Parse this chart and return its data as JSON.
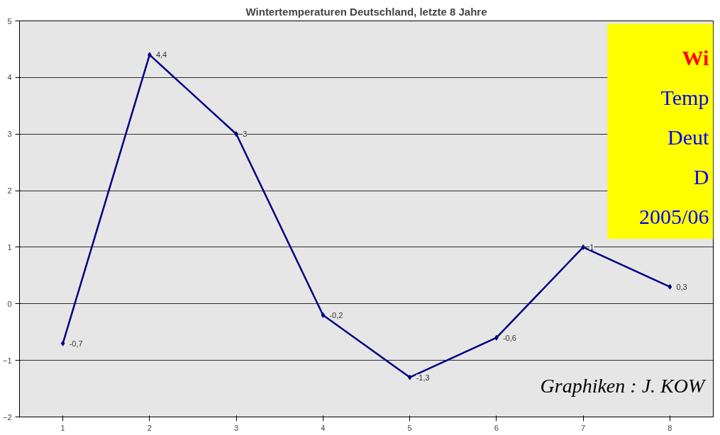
{
  "chart_data": {
    "type": "line",
    "title": "Wintertemperaturen Deutschland, letzte 8 Jahre",
    "categories": [
      "1",
      "2",
      "3",
      "4",
      "5",
      "6",
      "7",
      "8"
    ],
    "series": [
      {
        "color": "#000080",
        "values": [
          -0.7,
          4.4,
          3,
          -0.2,
          -1.3,
          -0.6,
          1,
          0.3
        ],
        "value_labels": [
          "-0,7",
          "4,4",
          "3",
          "-0,2",
          "-1,3",
          "-0,6",
          "1",
          "0,3"
        ]
      }
    ],
    "ylim": [
      -2,
      5
    ],
    "yticks": [
      -2,
      -1,
      0,
      1,
      2,
      3,
      4,
      5
    ],
    "grid": "y",
    "marker": "diamond",
    "line_style": "solid",
    "annotations": [
      "Wi",
      "Temp",
      "Deut",
      "D",
      "2005/06",
      "Graphiken : J. KOW"
    ]
  }
}
